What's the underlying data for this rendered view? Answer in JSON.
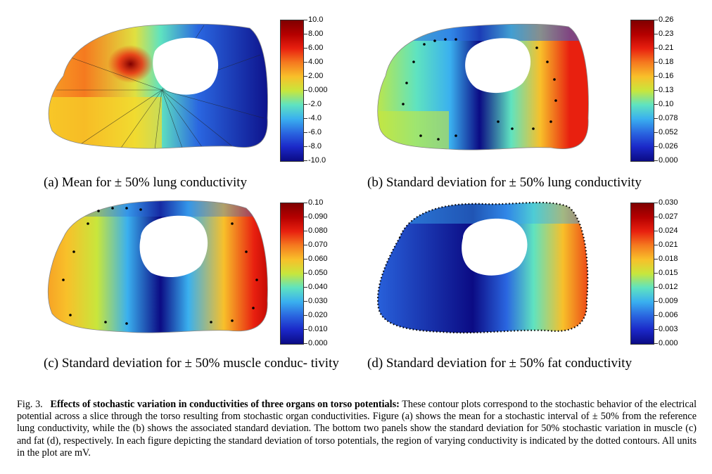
{
  "panels": [
    {
      "id": "a",
      "caption": "(a) Mean for ± 50% lung conductivity",
      "colorbar_ticks": [
        "10.0",
        "8.00",
        "6.00",
        "4.00",
        "2.00",
        "0.000",
        "-2.0",
        "-4.0",
        "-6.0",
        "-8.0",
        "-10.0"
      ],
      "colors": [
        "#7f0000",
        "#b50000",
        "#e8200f",
        "#f57a1f",
        "#f8c02a",
        "#c8e63c",
        "#5fe3c0",
        "#3ab0ef",
        "#2a66e0",
        "#1b28c8",
        "#0b0b84"
      ]
    },
    {
      "id": "b",
      "caption": "(b) Standard deviation for ± 50% lung conductivity",
      "colorbar_ticks": [
        "0.26",
        "0.23",
        "0.21",
        "0.18",
        "0.16",
        "0.13",
        "0.10",
        "0.078",
        "0.052",
        "0.026",
        "0.000"
      ],
      "colors": [
        "#7f0000",
        "#b50000",
        "#e8200f",
        "#f57a1f",
        "#f8c02a",
        "#c8e63c",
        "#5fe3c0",
        "#3ab0ef",
        "#2a66e0",
        "#1b28c8",
        "#0b0b84"
      ]
    },
    {
      "id": "c",
      "caption": "(c) Standard deviation for ± 50% muscle conduc- tivity",
      "colorbar_ticks": [
        "0.10",
        "0.090",
        "0.080",
        "0.070",
        "0.060",
        "0.050",
        "0.040",
        "0.030",
        "0.020",
        "0.010",
        "0.000"
      ],
      "colors": [
        "#7f0000",
        "#b50000",
        "#e8200f",
        "#f57a1f",
        "#f8c02a",
        "#c8e63c",
        "#5fe3c0",
        "#3ab0ef",
        "#2a66e0",
        "#1b28c8",
        "#0b0b84"
      ]
    },
    {
      "id": "d",
      "caption": "(d) Standard deviation for ± 50% fat conductivity",
      "colorbar_ticks": [
        "0.030",
        "0.027",
        "0.024",
        "0.021",
        "0.018",
        "0.015",
        "0.012",
        "0.009",
        "0.006",
        "0.003",
        "0.000"
      ],
      "colors": [
        "#7f0000",
        "#b50000",
        "#e8200f",
        "#f57a1f",
        "#f8c02a",
        "#c8e63c",
        "#5fe3c0",
        "#3ab0ef",
        "#2a66e0",
        "#1b28c8",
        "#0b0b84"
      ]
    }
  ],
  "figure_caption": {
    "label": "Fig. 3.",
    "title": "Effects of stochastic variation in conductivities of three organs on torso potentials:",
    "body": "These contour plots correspond to the stochastic behavior of the electrical potential across a slice through the torso resulting from stochastic organ conductivities. Figure (a) shows the mean for a stochastic interval of ± 50% from the reference lung conductivity, while the (b) shows the associated standard deviation. The bottom two panels show the standard deviation for 50% stochastic variation in muscle (c) and fat (d), respectively. In each figure depicting the standard deviation of torso potentials, the region of varying conductivity is indicated by the dotted contours. All units in the plot are mV."
  }
}
